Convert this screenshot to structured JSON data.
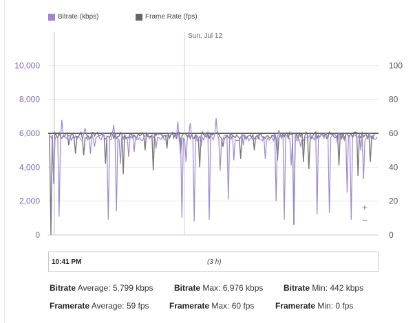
{
  "legend": {
    "bitrate_label": "Bitrate (kbps)",
    "framerate_label": "Frame Rate (fps)"
  },
  "date_marker": "Sun, Jul 12",
  "navigator": {
    "start_time": "10:41 PM",
    "range": "(3 h)"
  },
  "zoom": {
    "in_label": "+",
    "out_label": "−"
  },
  "stats": {
    "bitrate_avg_label": "Bitrate",
    "bitrate_avg_text": "Average: 5,799 kbps",
    "bitrate_max_label": "Bitrate",
    "bitrate_max_text": "Max: 6,976 kbps",
    "bitrate_min_label": "Bitrate",
    "bitrate_min_text": "Min: 442 kbps",
    "framerate_avg_label": "Framerate",
    "framerate_avg_text": "Average: 59 fps",
    "framerate_max_label": "Framerate",
    "framerate_max_text": "Max: 60 fps",
    "framerate_min_label": "Framerate",
    "framerate_min_text": "Min: 0 fps"
  },
  "colors": {
    "bitrate": "#9b87d2",
    "framerate": "#777777",
    "grid": "#e9e9e9"
  },
  "chart_data": {
    "type": "line",
    "x_range_hours": [
      0,
      3
    ],
    "y_left": {
      "label": "Bitrate (kbps)",
      "ticks": [
        0,
        2000,
        4000,
        6000,
        8000,
        10000
      ],
      "tick_labels": [
        "0",
        "2,000",
        "4,000",
        "6,000",
        "8,000",
        "10,000"
      ],
      "range": [
        0,
        12000
      ]
    },
    "y_right": {
      "label": "Frame Rate (fps)",
      "ticks": [
        0,
        20,
        40,
        60,
        80,
        100
      ],
      "tick_labels": [
        "0",
        "20",
        "40",
        "60",
        "80",
        "100"
      ],
      "range": [
        0,
        120
      ]
    },
    "series": [
      {
        "name": "Bitrate (kbps)",
        "axis": "left",
        "baseline": 5800,
        "dips": [
          [
            0.07,
            3000
          ],
          [
            0.14,
            1100
          ],
          [
            0.18,
            6800
          ],
          [
            0.55,
            6300
          ],
          [
            0.62,
            4800
          ],
          [
            0.68,
            5200
          ],
          [
            0.9,
            900
          ],
          [
            0.97,
            6500
          ],
          [
            1.03,
            1400
          ],
          [
            1.09,
            4200
          ],
          [
            1.2,
            4600
          ],
          [
            1.3,
            4900
          ],
          [
            1.63,
            5100
          ],
          [
            1.95,
            6700
          ],
          [
            2.02,
            1000
          ],
          [
            2.08,
            4300
          ],
          [
            2.15,
            6600
          ],
          [
            2.21,
            800
          ],
          [
            2.32,
            5200
          ],
          [
            2.44,
            900
          ],
          [
            2.55,
            6900
          ],
          [
            2.6,
            3800
          ],
          [
            2.73,
            2100
          ],
          [
            2.82,
            4400
          ],
          [
            2.95,
            5300
          ],
          [
            3.29,
            4500
          ],
          [
            3.46,
            2000
          ],
          [
            3.5,
            6200
          ],
          [
            3.58,
            900
          ],
          [
            3.68,
            4100
          ],
          [
            3.73,
            900
          ],
          [
            3.83,
            5200
          ],
          [
            4.09,
            1200
          ],
          [
            4.28,
            1300
          ],
          [
            4.4,
            5400
          ],
          [
            4.55,
            2500
          ],
          [
            4.6,
            900
          ],
          [
            4.74,
            5000
          ],
          [
            4.79,
            3300
          ]
        ],
        "max": 6976,
        "min": 442,
        "average": 5799
      },
      {
        "name": "Frame Rate (fps)",
        "axis": "right",
        "baseline": 59,
        "dips": [
          [
            0.02,
            0
          ],
          [
            0.06,
            31
          ],
          [
            0.3,
            53
          ],
          [
            0.4,
            48
          ],
          [
            0.52,
            47
          ],
          [
            0.85,
            42
          ],
          [
            1.12,
            36
          ],
          [
            1.45,
            50
          ],
          [
            1.58,
            38
          ],
          [
            1.8,
            51
          ],
          [
            2.01,
            48
          ],
          [
            2.3,
            40
          ],
          [
            2.64,
            52
          ],
          [
            2.92,
            45
          ],
          [
            3.13,
            50
          ],
          [
            3.47,
            44
          ],
          [
            3.72,
            6
          ],
          [
            3.88,
            43
          ],
          [
            3.95,
            39
          ],
          [
            4.42,
            41
          ],
          [
            4.7,
            35
          ],
          [
            4.9,
            43
          ]
        ],
        "max": 60,
        "min": 0,
        "average": 59
      }
    ]
  }
}
